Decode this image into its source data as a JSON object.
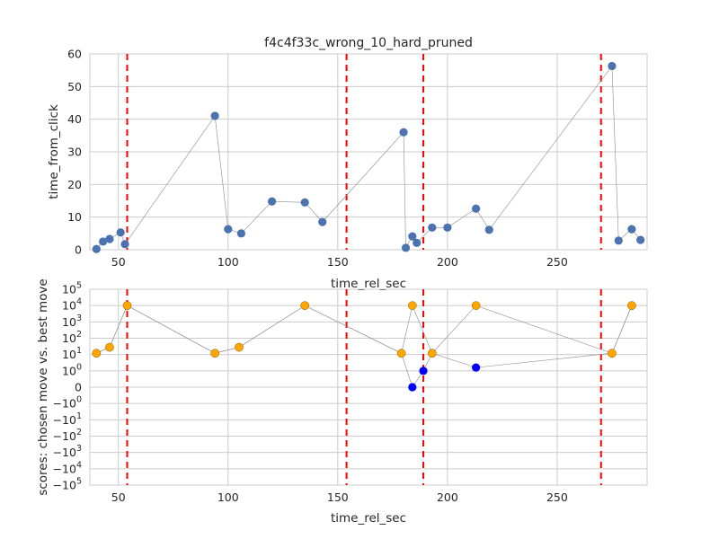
{
  "chart_data": [
    {
      "type": "scatter",
      "title": "f4c4f33c_wrong_10_hard_pruned",
      "xlabel": "time_rel_sec",
      "ylabel": "time_from_click",
      "xlim": [
        37,
        291
      ],
      "ylim": [
        0,
        60
      ],
      "xticks": [
        "50",
        "100",
        "150",
        "200",
        "250"
      ],
      "xtick_values": [
        50,
        100,
        150,
        200,
        250
      ],
      "yticks": [
        "0",
        "10",
        "20",
        "30",
        "40",
        "50",
        "60"
      ],
      "ytick_values": [
        0,
        10,
        20,
        30,
        40,
        50,
        60
      ],
      "grid": true,
      "marker_color": "#4c72b0",
      "line_color": "#8c8c8c",
      "vline_color": "#ff0000",
      "vlines": [
        54,
        154,
        189,
        270
      ],
      "series": [
        {
          "points": [
            [
              40,
              0.2
            ],
            [
              43,
              2.5
            ],
            [
              46,
              3.3
            ],
            [
              51,
              5.3
            ],
            [
              53,
              1.7
            ],
            [
              94,
              41
            ],
            [
              100,
              6.3
            ],
            [
              106,
              5
            ],
            [
              120,
              14.8
            ],
            [
              135,
              14.5
            ],
            [
              143,
              8.5
            ],
            [
              180,
              36
            ],
            [
              181,
              0.6
            ],
            [
              184,
              4.1
            ],
            [
              186,
              2.1
            ],
            [
              193,
              6.8
            ],
            [
              200,
              6.8
            ],
            [
              213,
              12.6
            ],
            [
              219,
              6.1
            ],
            [
              275,
              56.3
            ],
            [
              278,
              2.8
            ],
            [
              284,
              6.3
            ],
            [
              288,
              3
            ]
          ]
        }
      ]
    },
    {
      "type": "scatter",
      "xlabel": "time_rel_sec",
      "ylabel": "scores: chosen move vs. best move",
      "yscale": "symlog",
      "xlim": [
        37,
        291
      ],
      "xticks": [
        "50",
        "100",
        "150",
        "200",
        "250"
      ],
      "xtick_values": [
        50,
        100,
        150,
        200,
        250
      ],
      "yticks": [
        "10^5",
        "10^4",
        "10^3",
        "10^2",
        "10^1",
        "10^0",
        "0",
        "−10^0",
        "−10^1",
        "−10^2",
        "−10^3",
        "−10^4",
        "−10^5"
      ],
      "grid": true,
      "line_color": "#8c8c8c",
      "vline_color": "#ff0000",
      "vlines": [
        54,
        154,
        189,
        270
      ],
      "series": [
        {
          "color": "#0000ff",
          "points": [
            [
              40,
              12
            ],
            [
              46,
              28
            ],
            [
              54,
              10000
            ],
            [
              94,
              12
            ],
            [
              105,
              28
            ],
            [
              135,
              10000
            ],
            [
              179,
              12
            ],
            [
              184,
              0
            ],
            [
              189,
              1
            ],
            [
              193,
              12
            ],
            [
              213,
              1.6
            ],
            [
              275,
              12
            ],
            [
              284,
              10000
            ]
          ]
        },
        {
          "color": "#ffa500",
          "points": [
            [
              40,
              12
            ],
            [
              46,
              28
            ],
            [
              54,
              10000
            ],
            [
              94,
              12
            ],
            [
              105,
              28
            ],
            [
              135,
              10000
            ],
            [
              179,
              12
            ],
            [
              184,
              10000
            ],
            [
              193,
              12
            ],
            [
              213,
              10000
            ],
            [
              275,
              12
            ],
            [
              284,
              10000
            ]
          ]
        }
      ]
    }
  ]
}
